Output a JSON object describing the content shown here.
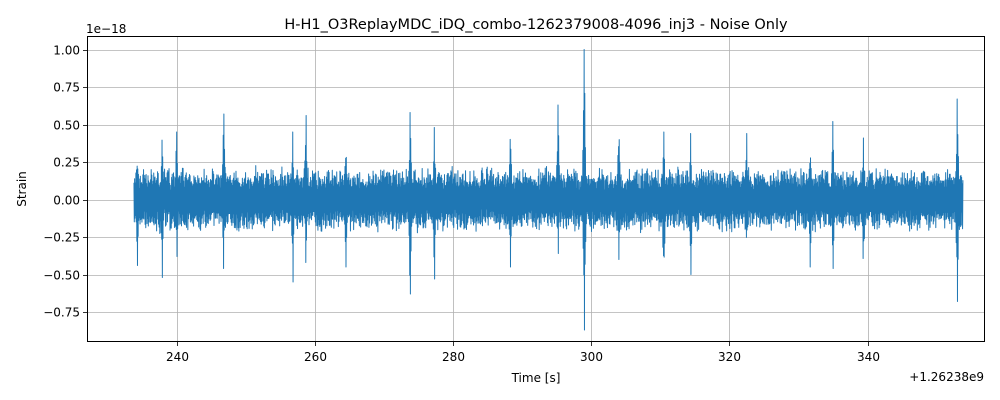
{
  "chart_data": {
    "type": "line",
    "title": "H-H1_O3ReplayMDC_iDQ_combo-1262379008-4096_inj3 - Noise Only",
    "xlabel": "Time [s]",
    "ylabel": "Strain",
    "y_scale_label": "1e−18",
    "x_offset_label": "+1.26238e9",
    "xlim": [
      227.0,
      357.0
    ],
    "ylim": [
      -0.95,
      1.09
    ],
    "x_ticks": [
      240,
      260,
      280,
      300,
      320,
      340
    ],
    "x_tick_labels": [
      "240",
      "260",
      "280",
      "300",
      "320",
      "340"
    ],
    "y_ticks": [
      -0.75,
      -0.5,
      -0.25,
      0.0,
      0.25,
      0.5,
      0.75,
      1.0
    ],
    "y_tick_labels": [
      "−0.75",
      "−0.50",
      "−0.25",
      "0.00",
      "0.25",
      "0.50",
      "0.75",
      "1.00"
    ],
    "grid": true,
    "line_color": "#1f77b4",
    "series": [
      {
        "time_range": [
          233.8,
          353.8
        ],
        "typical_amplitude": 0.22,
        "bursts": [
          {
            "t": 234.3,
            "max": 0.4,
            "min": -0.44
          },
          {
            "t": 237.9,
            "max": 0.51,
            "min": -0.52
          },
          {
            "t": 240.0,
            "max": 0.45,
            "min": -0.38
          },
          {
            "t": 246.8,
            "max": 0.57,
            "min": -0.46
          },
          {
            "t": 256.8,
            "max": 0.45,
            "min": -0.55
          },
          {
            "t": 258.7,
            "max": 0.56,
            "min": -0.42
          },
          {
            "t": 264.5,
            "max": 0.42,
            "min": -0.45
          },
          {
            "t": 273.8,
            "max": 0.58,
            "min": -0.63
          },
          {
            "t": 277.3,
            "max": 0.48,
            "min": -0.53
          },
          {
            "t": 288.3,
            "max": 0.47,
            "min": -0.45
          },
          {
            "t": 295.2,
            "max": 0.63,
            "min": -0.36
          },
          {
            "t": 299.0,
            "max": 1.0,
            "min": -0.87
          },
          {
            "t": 304.0,
            "max": 0.53,
            "min": -0.4
          },
          {
            "t": 310.5,
            "max": 0.45,
            "min": -0.56
          },
          {
            "t": 314.4,
            "max": 0.44,
            "min": -0.5
          },
          {
            "t": 322.5,
            "max": 0.44,
            "min": -0.42
          },
          {
            "t": 331.7,
            "max": 0.42,
            "min": -0.45
          },
          {
            "t": 335.0,
            "max": 0.52,
            "min": -0.46
          },
          {
            "t": 339.4,
            "max": 0.41,
            "min": -0.48
          },
          {
            "t": 353.0,
            "max": 0.67,
            "min": -0.68
          }
        ]
      }
    ]
  }
}
